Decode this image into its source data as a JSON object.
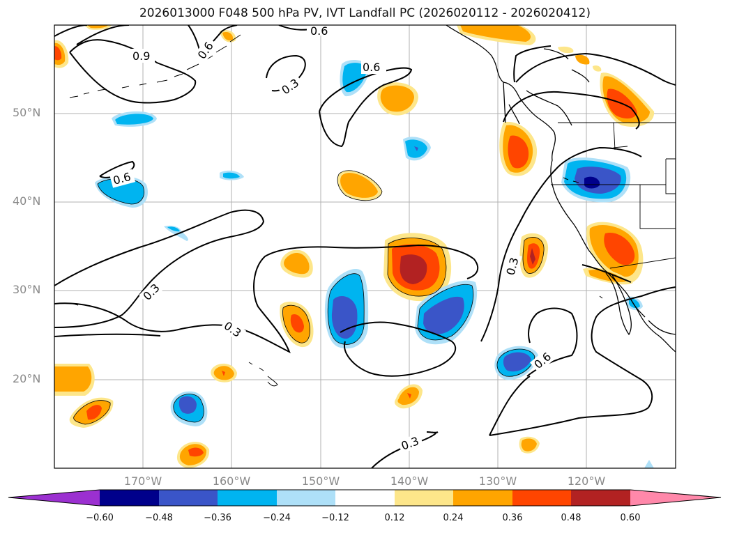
{
  "title": "2026013000 F048 500 hPa PV, IVT Landfall PC (2026020112 - 2026020412)",
  "lat_labels": [
    "50°N",
    "40°N",
    "30°N",
    "20°N"
  ],
  "lon_labels": [
    "170°W",
    "160°W",
    "150°W",
    "140°W",
    "130°W",
    "120°W"
  ],
  "contour_labels": [
    "0.6",
    "0.9",
    "0.6",
    "0.3",
    "0.6",
    "0.6",
    "0.3",
    "0.3",
    "0.3",
    "0.6",
    "0.3"
  ],
  "colorbar": {
    "ticks": [
      "−0.60",
      "−0.48",
      "−0.36",
      "−0.24",
      "−0.12",
      "0.12",
      "0.24",
      "0.36",
      "0.48",
      "0.60"
    ],
    "colors": [
      "#9b30d0",
      "#00008b",
      "#3a55c8",
      "#00b4f0",
      "#aee0f8",
      "#ffffff",
      "#fde68a",
      "#ffa500",
      "#ff4500",
      "#b22222",
      "#ff88aa"
    ]
  },
  "colors": {
    "neg_light": "#aee0f8",
    "neg_mid": "#00b4f0",
    "neg_strong": "#3a55c8",
    "neg_max": "#00008b",
    "pos_light": "#fde68a",
    "pos_mid": "#ffa500",
    "pos_strong": "#ff4500",
    "pos_max": "#b22222"
  }
}
